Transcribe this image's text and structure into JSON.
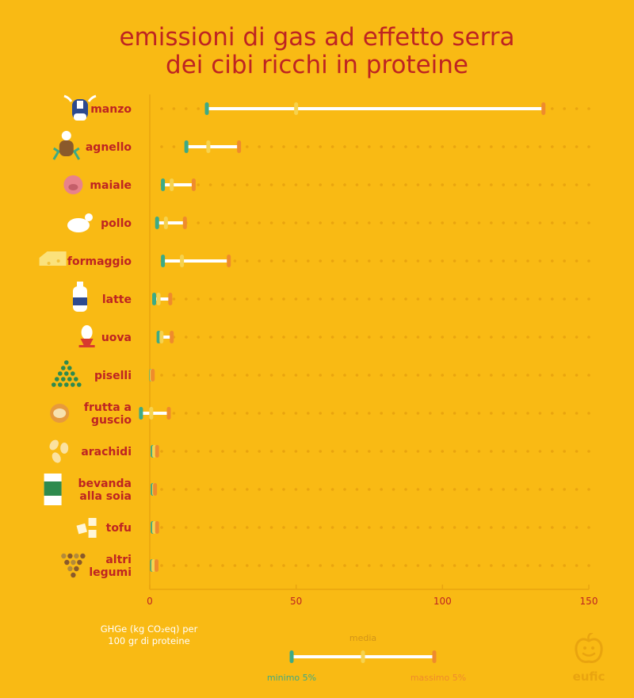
{
  "title_lines": [
    "emissioni di gas ad effetto serra",
    "dei cibi ricchi in proteine"
  ],
  "unit_label": [
    "GHGe (kg CO₂eq) per",
    "100 gr di proteine"
  ],
  "legend": {
    "mean": "media",
    "min": "minimo 5%",
    "max": "massimo 5%"
  },
  "logo_text": "eufic",
  "colors": {
    "background": "#F9BA14",
    "label": "#BE2422",
    "min": "#3DAA85",
    "mean": "#F6D24E",
    "max": "#EF8B2C",
    "bar": "#FFFFFF"
  },
  "chart_data": {
    "type": "range-dot",
    "title": "emissioni di gas ad effetto serra dei cibi ricchi in proteine",
    "xlabel": "GHGe (kg CO₂eq) per 100 gr di proteine",
    "xlim": [
      0,
      150
    ],
    "xticks": [
      0,
      50,
      100,
      150
    ],
    "items": [
      {
        "label": [
          "manzo"
        ],
        "icon": "cow-icon",
        "min": 19.5,
        "mean": 50,
        "max": 134.5
      },
      {
        "label": [
          "agnello"
        ],
        "icon": "lamb-icon",
        "min": 12.5,
        "mean": 20,
        "max": 30.5
      },
      {
        "label": [
          "maiale"
        ],
        "icon": "pig-icon",
        "min": 4.5,
        "mean": 7.5,
        "max": 15
      },
      {
        "label": [
          "pollo"
        ],
        "icon": "chicken-icon",
        "min": 2.5,
        "mean": 5.5,
        "max": 12
      },
      {
        "label": [
          "formaggio"
        ],
        "icon": "cheese-icon",
        "min": 4.5,
        "mean": 11,
        "max": 27
      },
      {
        "label": [
          "latte"
        ],
        "icon": "milk-bottle-icon",
        "min": 1.5,
        "mean": 3,
        "max": 7
      },
      {
        "label": [
          "uova"
        ],
        "icon": "egg-icon",
        "min": 3,
        "mean": 4,
        "max": 7.5
      },
      {
        "label": [
          "piselli"
        ],
        "icon": "peas-icon",
        "min": 0.5,
        "mean": 0.7,
        "max": 1
      },
      {
        "label": [
          "frutta a",
          "guscio"
        ],
        "icon": "nut-icon",
        "min": -3,
        "mean": 0.5,
        "max": 6.5
      },
      {
        "label": [
          "arachidi"
        ],
        "icon": "peanut-icon",
        "min": 1,
        "mean": 1.5,
        "max": 2.5
      },
      {
        "label": [
          "bevanda",
          "alla soia"
        ],
        "icon": "soy-drink-icon",
        "min": 1,
        "mean": 1.5,
        "max": 1.8
      },
      {
        "label": [
          "tofu"
        ],
        "icon": "tofu-icon",
        "min": 1,
        "mean": 1.5,
        "max": 2.5
      },
      {
        "label": [
          "altri",
          "legumi"
        ],
        "icon": "legumes-icon",
        "min": 0.8,
        "mean": 1.2,
        "max": 2.3
      }
    ]
  }
}
